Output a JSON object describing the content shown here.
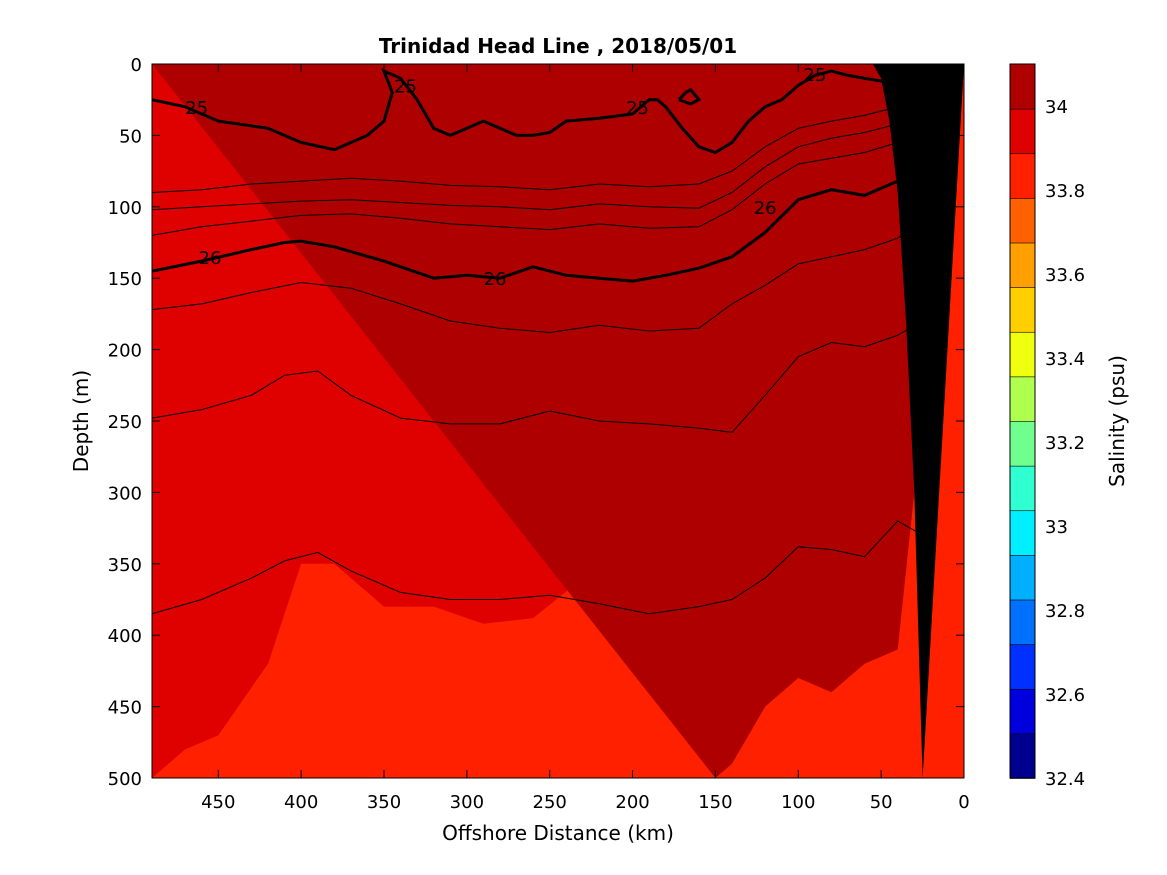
{
  "chart_data": {
    "type": "heatmap",
    "title": "Trinidad Head Line , 2018/05/01",
    "xlabel": "Offshore Distance (km)",
    "ylabel": "Depth (m)",
    "colorbar_label": "Salinity (psu)",
    "xlim": [
      490,
      0
    ],
    "ylim": [
      0,
      500
    ],
    "x_reversed": true,
    "y_reversed": true,
    "xticks": [
      450,
      400,
      350,
      300,
      250,
      200,
      150,
      100,
      50,
      0
    ],
    "yticks": [
      0,
      50,
      100,
      150,
      200,
      250,
      300,
      350,
      400,
      450,
      500
    ],
    "colorbar_range": [
      32.4,
      34.1
    ],
    "colorbar_ticks": [
      32.4,
      32.6,
      32.8,
      33,
      33.2,
      33.4,
      33.6,
      33.8,
      34
    ],
    "colorbar_tick_labels": [
      "32.4",
      "32.6",
      "32.8",
      "33",
      "33.2",
      "33.4",
      "33.6",
      "33.8",
      "34"
    ],
    "colorbar_colors": [
      "#00008f",
      "#0000df",
      "#0030ff",
      "#0070ff",
      "#00afff",
      "#00efff",
      "#30ffcf",
      "#70ff8f",
      "#afff4f",
      "#efff10",
      "#ffcf00",
      "#ff9f00",
      "#ff6000",
      "#ff2000",
      "#df0000",
      "#af0000"
    ],
    "salinity_levels": [
      {
        "min": 33.8,
        "max": 33.9,
        "color": "#ff2000"
      },
      {
        "min": 33.9,
        "max": 34.0,
        "color": "#df0000"
      },
      {
        "min": 34.0,
        "max": 34.1,
        "color": "#af0000"
      },
      {
        "min": 34.1,
        "max": 34.2,
        "color": "#800000"
      }
    ],
    "salinity_field": [
      {
        "x": [
          490,
          470,
          440,
          410,
          380,
          350,
          320,
          290,
          260,
          230,
          200,
          170,
          140,
          120,
          100,
          80,
          60,
          40,
          30,
          25
        ],
        "y": [
          10,
          30,
          20,
          10,
          12,
          12,
          25,
          35,
          40,
          45,
          40,
          20,
          2,
          2,
          10,
          20,
          20,
          20,
          8,
          0
        ],
        "color": "#0070ff"
      },
      {
        "x": [
          490,
          460,
          430,
          410,
          380,
          350,
          320,
          290,
          260,
          230,
          200,
          170,
          140,
          120,
          100,
          80,
          60,
          40,
          30,
          25
        ],
        "y": [
          92,
          88,
          85,
          80,
          75,
          75,
          78,
          80,
          82,
          78,
          80,
          82,
          70,
          50,
          40,
          35,
          30,
          25,
          20,
          0
        ],
        "color": "#00afff"
      },
      {
        "x": [
          490,
          460,
          430,
          410,
          380,
          350,
          320,
          290,
          260,
          230,
          200,
          170,
          140,
          120,
          100,
          80,
          60,
          40,
          30,
          25
        ],
        "y": [
          115,
          110,
          105,
          100,
          95,
          97,
          100,
          102,
          105,
          100,
          102,
          105,
          90,
          70,
          58,
          52,
          48,
          42,
          35,
          0
        ],
        "color": "#00efff"
      },
      {
        "x": [
          490,
          460,
          430,
          410,
          380,
          350,
          320,
          290,
          260,
          230,
          200,
          170,
          140,
          120,
          100,
          80,
          60,
          40,
          30,
          25
        ],
        "y": [
          130,
          124,
          118,
          113,
          110,
          113,
          118,
          122,
          125,
          120,
          122,
          120,
          105,
          85,
          70,
          65,
          60,
          52,
          45,
          0
        ],
        "color": "#30ffcf"
      },
      {
        "x": [
          490,
          460,
          430,
          410,
          380,
          350,
          320,
          290,
          260,
          230,
          200,
          170,
          140,
          120,
          100,
          80,
          60,
          40,
          30,
          25
        ],
        "y": [
          138,
          130,
          125,
          120,
          117,
          120,
          125,
          128,
          132,
          128,
          130,
          127,
          112,
          93,
          76,
          72,
          68,
          60,
          52,
          0
        ],
        "color": "#70ff8f"
      },
      {
        "x": [
          490,
          460,
          430,
          410,
          380,
          350,
          320,
          290,
          260,
          230,
          200,
          170,
          140,
          120,
          100,
          80,
          60,
          40,
          30,
          25
        ],
        "y": [
          145,
          137,
          130,
          126,
          123,
          127,
          133,
          137,
          140,
          136,
          138,
          134,
          119,
          100,
          82,
          79,
          75,
          68,
          60,
          0
        ],
        "color": "#afff4f"
      },
      {
        "x": [
          490,
          460,
          430,
          410,
          380,
          350,
          320,
          290,
          260,
          230,
          200,
          170,
          140,
          120,
          100,
          80,
          60,
          40,
          30,
          25
        ],
        "y": [
          150,
          143,
          136,
          131,
          129,
          134,
          142,
          146,
          148,
          145,
          150,
          145,
          130,
          110,
          90,
          86,
          83,
          76,
          67,
          0
        ],
        "color": "#efff10"
      },
      {
        "x": [
          490,
          460,
          430,
          410,
          380,
          350,
          320,
          290,
          260,
          230,
          200,
          170,
          140,
          120,
          100,
          80,
          60,
          40,
          30,
          25
        ],
        "y": [
          158,
          152,
          146,
          141,
          140,
          146,
          155,
          158,
          160,
          156,
          162,
          158,
          143,
          122,
          104,
          99,
          95,
          87,
          77,
          0
        ],
        "color": "#ffcf00"
      },
      {
        "x": [
          490,
          460,
          430,
          410,
          380,
          350,
          320,
          290,
          260,
          230,
          200,
          170,
          140,
          120,
          100,
          80,
          60,
          40,
          30,
          25
        ],
        "y": [
          166,
          160,
          155,
          150,
          150,
          157,
          166,
          170,
          172,
          168,
          174,
          170,
          156,
          136,
          118,
          112,
          108,
          100,
          90,
          0
        ],
        "color": "#ff9f00"
      },
      {
        "x": [
          490,
          460,
          430,
          410,
          380,
          350,
          320,
          290,
          260,
          230,
          200,
          170,
          140,
          120,
          100,
          80,
          60,
          40,
          30,
          25
        ],
        "y": [
          172,
          168,
          164,
          158,
          160,
          168,
          178,
          182,
          184,
          180,
          186,
          182,
          168,
          150,
          132,
          128,
          124,
          116,
          106,
          0
        ],
        "color": "#ff6000"
      },
      {
        "x": [
          490,
          460,
          430,
          400,
          370,
          340,
          310,
          280,
          250,
          220,
          190,
          160,
          140,
          120,
          100,
          80,
          60,
          40,
          30,
          25
        ],
        "y": [
          180,
          175,
          172,
          165,
          170,
          178,
          188,
          192,
          194,
          190,
          196,
          192,
          178,
          165,
          150,
          145,
          140,
          130,
          118,
          0
        ],
        "color": "#ff2000"
      },
      {
        "x": [
          490,
          470,
          450,
          420,
          400,
          380,
          350,
          320,
          290,
          260,
          230,
          200,
          170,
          150,
          140,
          130,
          120,
          100,
          80,
          60,
          40,
          30,
          25
        ],
        "y": [
          500,
          480,
          470,
          420,
          350,
          350,
          380,
          380,
          392,
          388,
          360,
          390,
          350,
          380,
          360,
          350,
          300,
          270,
          255,
          270,
          290,
          260,
          0
        ],
        "color": "#df0000"
      },
      {
        "x": [
          150,
          140,
          130,
          120,
          100,
          80,
          60,
          40,
          30,
          25
        ],
        "y": [
          500,
          490,
          470,
          450,
          430,
          440,
          420,
          410,
          300,
          0
        ],
        "color": "#af0000"
      }
    ],
    "isopycnals": [
      {
        "label": "",
        "x": [
          490,
          460,
          430,
          400,
          370,
          340,
          310,
          280,
          250,
          220,
          190,
          160,
          140,
          120,
          100,
          80,
          60,
          40,
          25
        ],
        "y": [
          90,
          88,
          84,
          82,
          80,
          82,
          85,
          86,
          88,
          84,
          86,
          84,
          75,
          58,
          45,
          40,
          36,
          30,
          18
        ]
      },
      {
        "label": "",
        "x": [
          490,
          460,
          430,
          400,
          370,
          340,
          310,
          280,
          250,
          220,
          190,
          160,
          140,
          120,
          100,
          80,
          60,
          40,
          25
        ],
        "y": [
          102,
          100,
          98,
          96,
          95,
          97,
          99,
          100,
          102,
          98,
          100,
          101,
          90,
          72,
          58,
          52,
          48,
          42,
          30
        ]
      },
      {
        "label": "",
        "x": [
          490,
          460,
          430,
          400,
          370,
          340,
          310,
          280,
          250,
          220,
          190,
          160,
          140,
          120,
          100,
          80,
          60,
          40,
          25
        ],
        "y": [
          120,
          114,
          110,
          106,
          105,
          108,
          112,
          114,
          116,
          112,
          115,
          114,
          102,
          84,
          70,
          66,
          62,
          55,
          45
        ]
      },
      {
        "label": "26",
        "x": [
          490,
          460,
          430,
          410,
          400,
          380,
          350,
          320,
          300,
          280,
          260,
          240,
          220,
          200,
          180,
          160,
          140,
          120,
          100,
          80,
          60,
          40,
          25
        ],
        "y": [
          145,
          138,
          130,
          125,
          124,
          128,
          138,
          150,
          148,
          150,
          142,
          148,
          150,
          152,
          148,
          143,
          135,
          118,
          95,
          88,
          92,
          82,
          65
        ]
      },
      {
        "label": "",
        "x": [
          490,
          460,
          430,
          400,
          370,
          340,
          310,
          280,
          250,
          220,
          190,
          160,
          140,
          120,
          100,
          80,
          60,
          40,
          25
        ],
        "y": [
          172,
          168,
          160,
          153,
          157,
          168,
          180,
          185,
          188,
          183,
          187,
          185,
          168,
          155,
          140,
          135,
          130,
          122,
          110
        ]
      },
      {
        "label": "",
        "x": [
          490,
          460,
          430,
          410,
          390,
          370,
          340,
          310,
          280,
          250,
          220,
          190,
          160,
          140,
          120,
          100,
          80,
          60,
          40,
          25
        ],
        "y": [
          248,
          242,
          232,
          218,
          215,
          232,
          248,
          252,
          252,
          243,
          250,
          252,
          255,
          258,
          232,
          205,
          195,
          198,
          190,
          180
        ]
      },
      {
        "label": "",
        "x": [
          490,
          460,
          430,
          410,
          390,
          370,
          340,
          310,
          280,
          250,
          220,
          190,
          160,
          140,
          120,
          100,
          80,
          60,
          40,
          25
        ],
        "y": [
          385,
          375,
          360,
          348,
          342,
          355,
          370,
          375,
          375,
          372,
          378,
          385,
          380,
          375,
          360,
          338,
          340,
          345,
          320,
          330
        ]
      }
    ],
    "isohaline_25": [
      {
        "label": "25",
        "x": [
          490,
          470,
          450,
          420,
          400,
          380,
          360,
          350,
          345,
          350,
          340,
          330,
          320,
          310,
          300,
          290,
          280,
          270,
          260,
          250,
          240,
          220,
          200,
          190,
          185,
          180,
          170,
          160,
          150,
          140,
          130,
          120,
          110,
          100,
          90,
          80,
          70,
          60,
          50,
          40,
          30
        ],
        "y": [
          25,
          30,
          40,
          45,
          55,
          60,
          50,
          40,
          20,
          5,
          10,
          25,
          45,
          50,
          45,
          40,
          45,
          50,
          50,
          48,
          40,
          38,
          35,
          25,
          25,
          30,
          45,
          58,
          62,
          55,
          40,
          30,
          25,
          15,
          8,
          5,
          8,
          10,
          12,
          10,
          8
        ]
      },
      {
        "label": "",
        "x": [
          172,
          168,
          165,
          160,
          165,
          172
        ],
        "y": [
          25,
          20,
          18,
          25,
          28,
          25
        ]
      }
    ],
    "bathymetry": {
      "x": [
        25,
        30,
        35,
        40,
        45,
        50,
        55,
        0
      ],
      "y": [
        500,
        300,
        180,
        90,
        40,
        10,
        0,
        0
      ],
      "color": "#000000"
    },
    "contour_labels": [
      {
        "text": "25",
        "x": 463,
        "y": 30
      },
      {
        "text": "25",
        "x": 337,
        "y": 15
      },
      {
        "text": "25",
        "x": 197,
        "y": 30
      },
      {
        "text": "25",
        "x": 90,
        "y": 7
      },
      {
        "text": "26",
        "x": 455,
        "y": 135
      },
      {
        "text": "26",
        "x": 283,
        "y": 150
      },
      {
        "text": "26",
        "x": 120,
        "y": 100
      }
    ]
  }
}
